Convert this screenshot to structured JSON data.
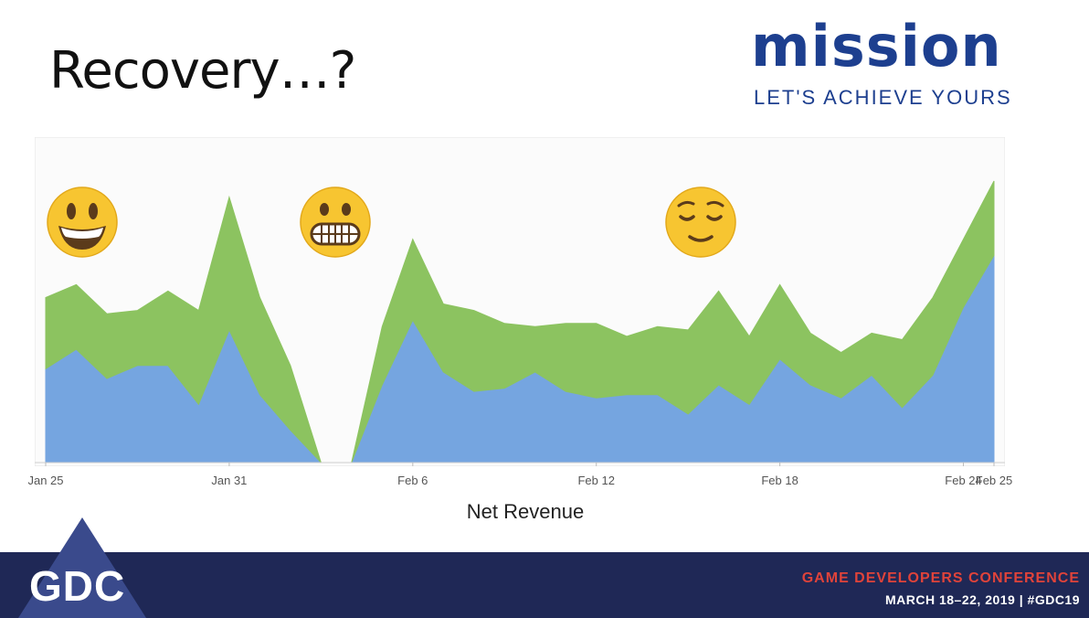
{
  "slide": {
    "title": "Recovery…?"
  },
  "brand": {
    "name": "mission",
    "tagline": "LET'S ACHIEVE YOURS",
    "colors": {
      "text": "#1d3f8f",
      "ring": [
        "#f2a900",
        "#e94e1b",
        "#2aa0d8",
        "#1d3f8f"
      ]
    }
  },
  "chart_data": {
    "type": "area",
    "stacked": true,
    "xlabel": "Net Revenue",
    "ylabel": "",
    "x": [
      "Jan 25",
      "Jan 26",
      "Jan 27",
      "Jan 28",
      "Jan 29",
      "Jan 30",
      "Jan 31",
      "Feb 1",
      "Feb 2",
      "Feb 3",
      "Feb 4",
      "Feb 5",
      "Feb 6",
      "Feb 7",
      "Feb 8",
      "Feb 9",
      "Feb 10",
      "Feb 11",
      "Feb 12",
      "Feb 13",
      "Feb 14",
      "Feb 15",
      "Feb 16",
      "Feb 17",
      "Feb 18",
      "Feb 19",
      "Feb 20",
      "Feb 21",
      "Feb 22",
      "Feb 23",
      "Feb 24",
      "Feb 25"
    ],
    "x_tick_labels": [
      "Jan 25",
      "Jan 31",
      "Feb 6",
      "Feb 12",
      "Feb 18",
      "Feb 24",
      "Feb 25"
    ],
    "ylim": [
      0,
      100
    ],
    "grid": false,
    "legend": "none",
    "series": [
      {
        "color": "#75a5e0",
        "values": [
          29,
          35,
          26,
          30,
          30,
          18,
          41,
          21,
          10,
          0,
          0,
          24,
          44,
          28,
          22,
          23,
          28,
          22,
          20,
          21,
          21,
          15,
          24,
          18,
          32,
          24,
          20,
          27,
          17,
          27,
          48,
          64
        ]
      },
      {
        "color": "#8cc360",
        "values": [
          22,
          20,
          20,
          17,
          23,
          29,
          41,
          30,
          20,
          0,
          0,
          18,
          25,
          21,
          25,
          20,
          14,
          21,
          23,
          18,
          21,
          26,
          29,
          21,
          23,
          16,
          14,
          13,
          21,
          24,
          21,
          23
        ]
      }
    ],
    "annotations": [
      {
        "kind": "emoji",
        "glyph": "😃",
        "name": "smiley-face"
      },
      {
        "kind": "emoji",
        "glyph": "😬",
        "name": "grimacing-face"
      },
      {
        "kind": "emoji",
        "glyph": "😌",
        "name": "relieved-face"
      }
    ]
  },
  "footer": {
    "logo": "GDC",
    "conference": "GAME DEVELOPERS CONFERENCE",
    "dates": "MARCH 18–22, 2019  |  #GDC19",
    "colors": {
      "band": "#1f2856",
      "accent": "#e0433a"
    }
  }
}
